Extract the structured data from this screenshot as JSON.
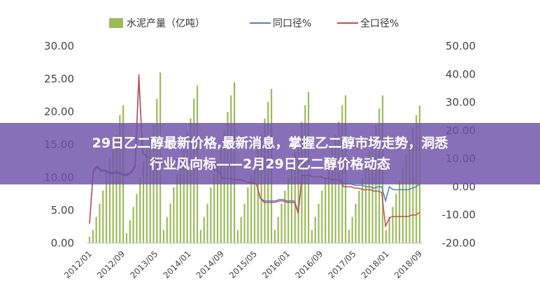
{
  "banner": {
    "line1": "29日乙二醇最新价格,最新消息，掌握乙二醇市场走势，洞悉",
    "line2": "行业风向标——2月29日乙二醇价格动态"
  },
  "chart_data": {
    "type": "bar",
    "legend_position": "top",
    "grid": false,
    "y_left": {
      "ticks": [
        "30.00",
        "25.00",
        "20.00",
        "15.00",
        "10.00",
        "5.00",
        "0.00"
      ],
      "range": [
        0,
        30
      ]
    },
    "y_right": {
      "ticks": [
        "50.00",
        "40.00",
        "30.00",
        "20.00",
        "10.00",
        "0.00",
        "-10.00",
        "-20.00"
      ],
      "range": [
        -20,
        50
      ]
    },
    "x_tick_labels": [
      "2012/01",
      "2012/09",
      "2013/05",
      "2014/01",
      "2014/09",
      "2015/05",
      "2016/01",
      "2016/09",
      "2017/05",
      "2018/01",
      "2018/09"
    ],
    "colors": {
      "bars": "#9bbb59",
      "line_same": "#4f81bd",
      "line_full": "#c0504d"
    },
    "series": [
      {
        "name": "水泥产量（亿吨）",
        "kind": "bar",
        "axis": "left",
        "values": [
          1.0,
          2.0,
          4.0,
          6.0,
          8.0,
          11.0,
          13.0,
          14.5,
          16.5,
          19.5,
          21.0,
          1.5,
          3.5,
          5.5,
          7.5,
          10.0,
          12.5,
          14.5,
          16.0,
          18.0,
          22.0,
          26.0,
          2.0,
          4.0,
          6.0,
          8.5,
          10.5,
          13.0,
          15.0,
          17.0,
          19.0,
          22.0,
          24.0,
          2.0,
          4.0,
          6.0,
          8.5,
          10.5,
          12.5,
          15.0,
          17.0,
          20.0,
          22.5,
          24.5,
          2.0,
          4.0,
          6.0,
          8.5,
          10.5,
          12.5,
          14.5,
          16.5,
          19.0,
          21.5,
          23.5,
          2.0,
          4.0,
          6.0,
          8.0,
          10.0,
          12.0,
          14.0,
          16.0,
          18.5,
          21.0,
          23.0,
          2.0,
          4.0,
          6.0,
          8.0,
          10.0,
          12.5,
          14.5,
          16.5,
          18.5,
          21.0,
          22.5,
          2.0,
          4.0,
          6.0,
          8.0,
          10.0,
          12.0,
          14.0,
          16.0,
          18.0,
          20.5,
          22.5,
          2.0,
          4.0,
          5.5,
          7.5,
          9.5,
          11.5,
          13.5,
          15.5,
          17.5,
          19.5,
          21.0
        ]
      },
      {
        "name": "同口径%",
        "kind": "line",
        "axis": "right",
        "values": [
          -13,
          5,
          7,
          5.5,
          5.5,
          5,
          4.5,
          5,
          4.5,
          4,
          4,
          5,
          7,
          38,
          12,
          11,
          10,
          10,
          9,
          8.5,
          8,
          8.5,
          9,
          9.5,
          10,
          9,
          9,
          8.5,
          8.5,
          8,
          7.5,
          7,
          6.5,
          6,
          5.5,
          3,
          3,
          3,
          2.5,
          2.5,
          2.5,
          2,
          1.5,
          1.5,
          1,
          -4,
          -5,
          -5,
          -5,
          -5,
          -4.5,
          -4.5,
          -5,
          -5,
          -5,
          -9,
          4,
          4,
          4,
          3.5,
          3.5,
          3.5,
          3,
          3,
          2.5,
          2.5,
          2.5,
          1,
          1,
          1,
          0.5,
          0.5,
          0.5,
          0,
          0,
          -0.5,
          0,
          0,
          -5,
          0,
          -1,
          -1,
          -1,
          -1,
          -1,
          -0.5,
          0,
          1
        ]
      },
      {
        "name": "全口径%",
        "kind": "line",
        "axis": "right",
        "values": [
          -13,
          6,
          7.5,
          6,
          6,
          5.5,
          5,
          5.5,
          5,
          4.5,
          4.5,
          5.5,
          7.5,
          40,
          12,
          11,
          10,
          10,
          9,
          8.5,
          8,
          8.5,
          9,
          9.5,
          10,
          9,
          9,
          8.5,
          8.5,
          8,
          7.5,
          7,
          6.5,
          6,
          5.5,
          3,
          3,
          3,
          2.5,
          2.5,
          2.5,
          2,
          1.5,
          1.5,
          1,
          -4,
          -5.5,
          -5.5,
          -5.5,
          -5.5,
          -5,
          -5,
          -5.5,
          -5.5,
          -5.5,
          -9.5,
          4,
          4,
          4,
          3.5,
          3.5,
          3.5,
          3,
          3,
          2.5,
          2.5,
          2.5,
          0,
          0,
          0,
          -0.5,
          -0.5,
          -1,
          -1,
          -1,
          -1.5,
          -1.5,
          -2,
          -14,
          -11,
          -10.5,
          -10.5,
          -10.5,
          -10.5,
          -10.5,
          -10,
          -10,
          -9
        ]
      }
    ]
  }
}
